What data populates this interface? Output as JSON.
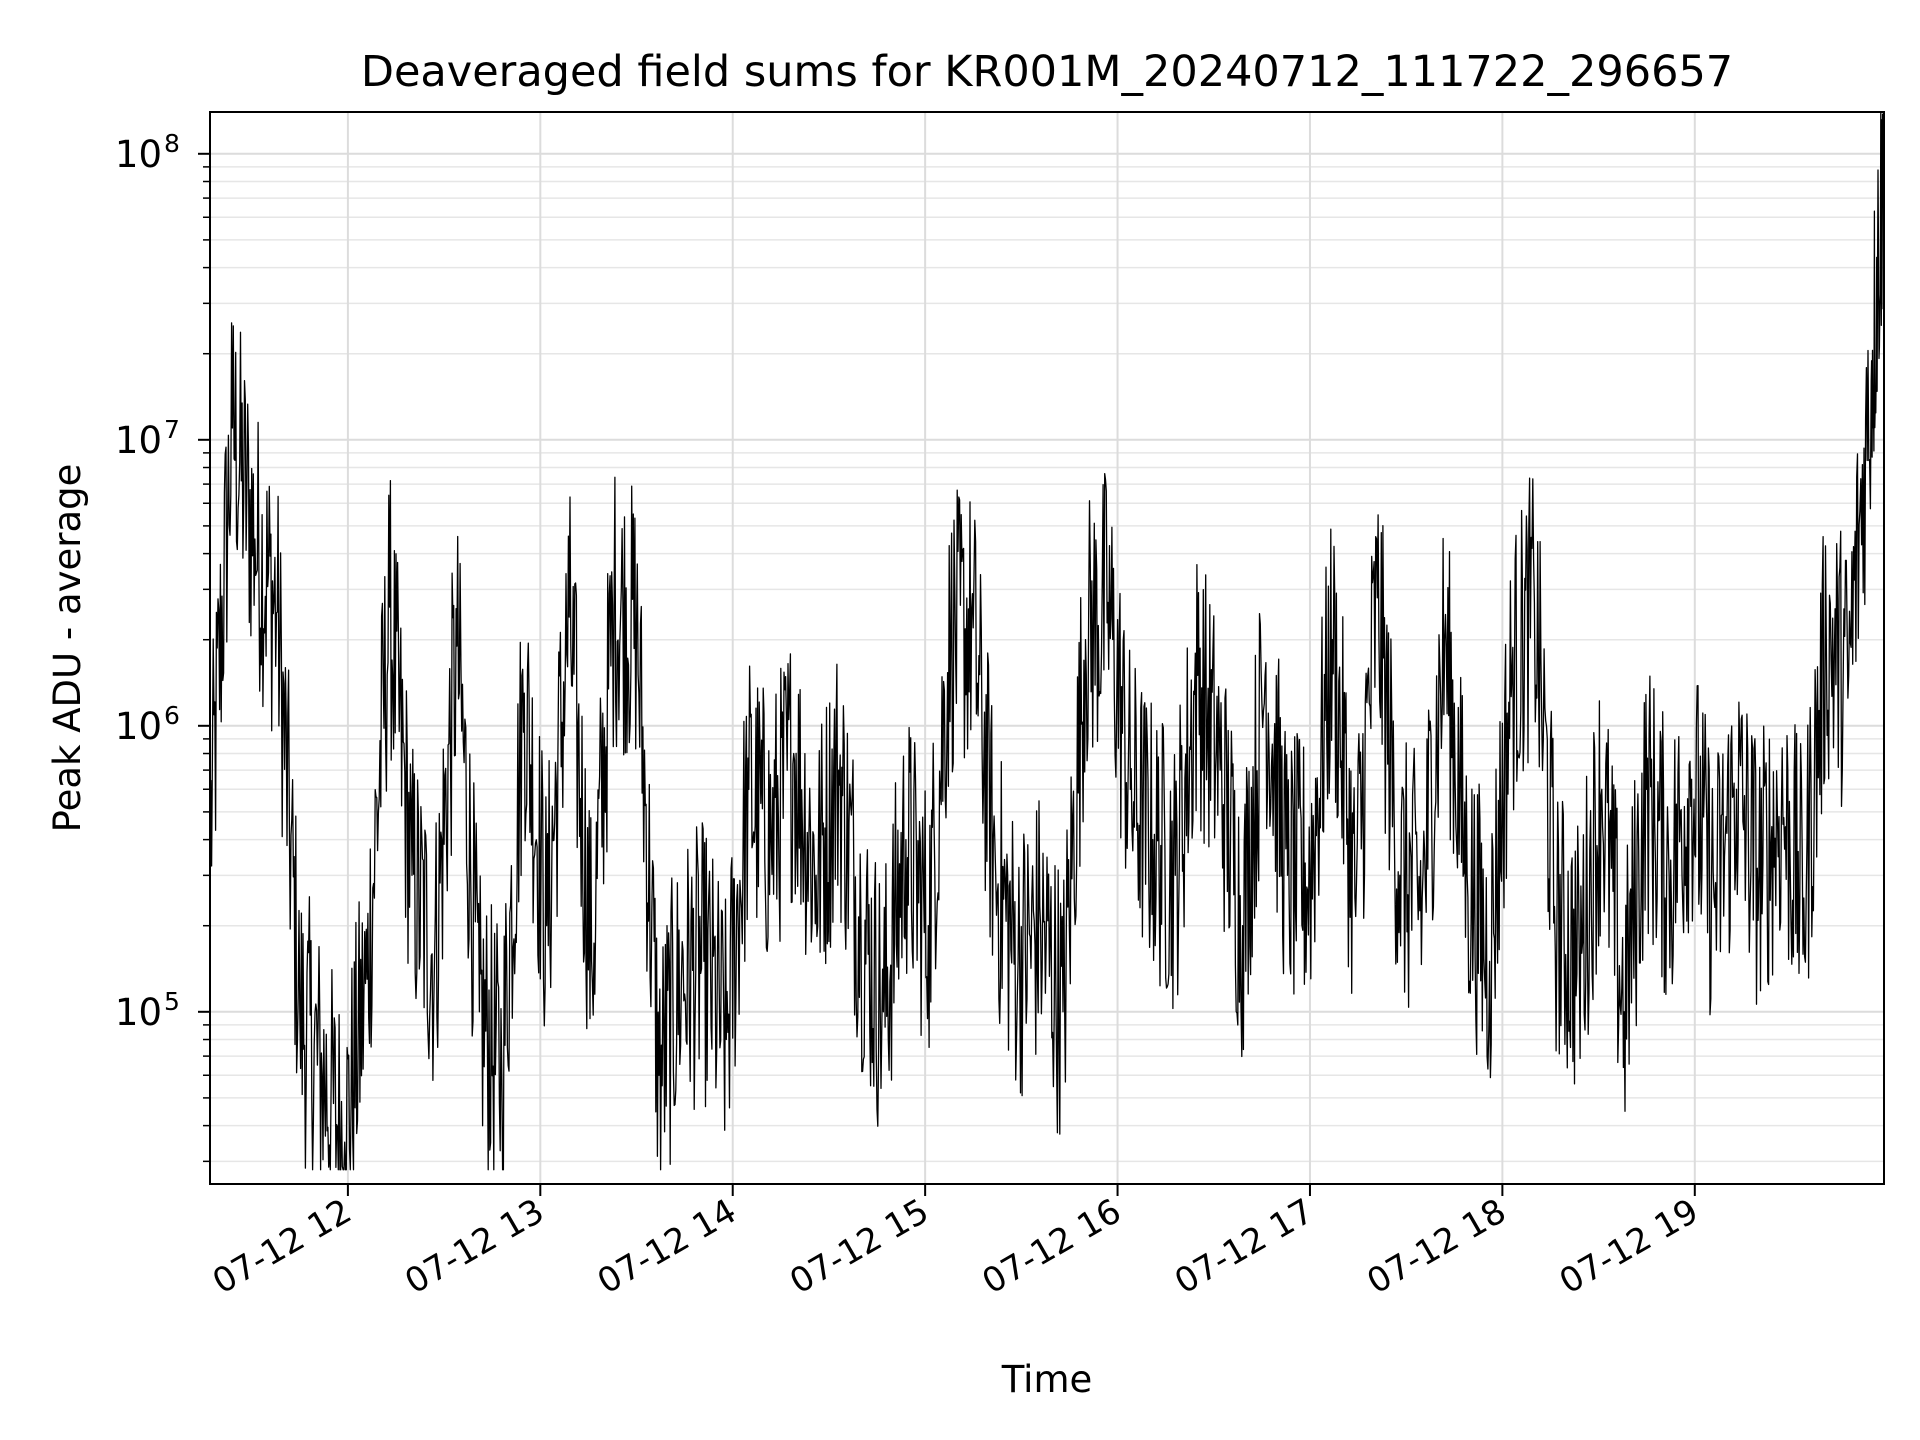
{
  "chart_data": {
    "type": "line",
    "title": "Deaveraged field sums for KR001M_20240712_111722_296657",
    "xlabel": "Time",
    "ylabel": "Peak ADU - average",
    "yscale": "log",
    "ylim": [
      25000,
      140000000
    ],
    "xlim": [
      "07-12 11:17",
      "07-12 19:59"
    ],
    "grid": "major and minor (light gray)",
    "line_color": "#000000",
    "x_ticks": [
      "07-12 12",
      "07-12 13",
      "07-12 14",
      "07-12 15",
      "07-12 16",
      "07-12 17",
      "07-12 18",
      "07-12 19"
    ],
    "y_ticks": [
      {
        "base": "10",
        "exp": "5"
      },
      {
        "base": "10",
        "exp": "6"
      },
      {
        "base": "10",
        "exp": "7"
      },
      {
        "base": "10",
        "exp": "8"
      }
    ],
    "series": [
      {
        "x": [
          "07-12 11:17",
          "07-12 11:24",
          "07-12 11:31",
          "07-12 11:38",
          "07-12 11:45",
          "07-12 11:52",
          "07-12 11:59",
          "07-12 12:06",
          "07-12 12:13",
          "07-12 12:20",
          "07-12 12:27",
          "07-12 12:34",
          "07-12 12:41",
          "07-12 12:48",
          "07-12 12:55",
          "07-12 13:02",
          "07-12 13:09",
          "07-12 13:16",
          "07-12 13:23",
          "07-12 13:30",
          "07-12 13:37",
          "07-12 13:44",
          "07-12 13:51",
          "07-12 13:58",
          "07-12 14:05",
          "07-12 14:12",
          "07-12 14:19",
          "07-12 14:26",
          "07-12 14:33",
          "07-12 14:40",
          "07-12 14:47",
          "07-12 14:54",
          "07-12 15:01",
          "07-12 15:08",
          "07-12 15:15",
          "07-12 15:22",
          "07-12 15:29",
          "07-12 15:36",
          "07-12 15:43",
          "07-12 15:50",
          "07-12 15:57",
          "07-12 16:04",
          "07-12 16:11",
          "07-12 16:18",
          "07-12 16:25",
          "07-12 16:32",
          "07-12 16:39",
          "07-12 16:46",
          "07-12 16:53",
          "07-12 17:00",
          "07-12 17:07",
          "07-12 17:14",
          "07-12 17:21",
          "07-12 17:28",
          "07-12 17:35",
          "07-12 17:42",
          "07-12 17:49",
          "07-12 17:56",
          "07-12 18:03",
          "07-12 18:10",
          "07-12 18:17",
          "07-12 18:24",
          "07-12 18:31",
          "07-12 18:38",
          "07-12 18:45",
          "07-12 18:52",
          "07-12 18:59",
          "07-12 19:06",
          "07-12 19:13",
          "07-12 19:20",
          "07-12 19:27",
          "07-12 19:34",
          "07-12 19:41",
          "07-12 19:48",
          "07-12 19:55",
          "07-12 19:59"
        ],
        "values": [
          400000,
          11000000,
          4500000,
          2500000,
          100000,
          60000,
          35000,
          130000,
          2600000,
          300000,
          150000,
          1900000,
          100000,
          60000,
          1300000,
          200000,
          2400000,
          150000,
          2700000,
          2200000,
          60000,
          130000,
          150000,
          80000,
          600000,
          400000,
          800000,
          300000,
          700000,
          200000,
          100000,
          400000,
          200000,
          2100000,
          2200000,
          300000,
          150000,
          200000,
          100000,
          2000000,
          2700000,
          600000,
          400000,
          300000,
          1500000,
          700000,
          200000,
          1500000,
          300000,
          300000,
          2000000,
          250000,
          2800000,
          300000,
          250000,
          2000000,
          300000,
          150000,
          1500000,
          2700000,
          200000,
          150000,
          600000,
          100000,
          600000,
          300000,
          650000,
          250000,
          600000,
          300000,
          500000,
          250000,
          2000000,
          1500000,
          16000000,
          95000000
        ]
      }
    ]
  }
}
